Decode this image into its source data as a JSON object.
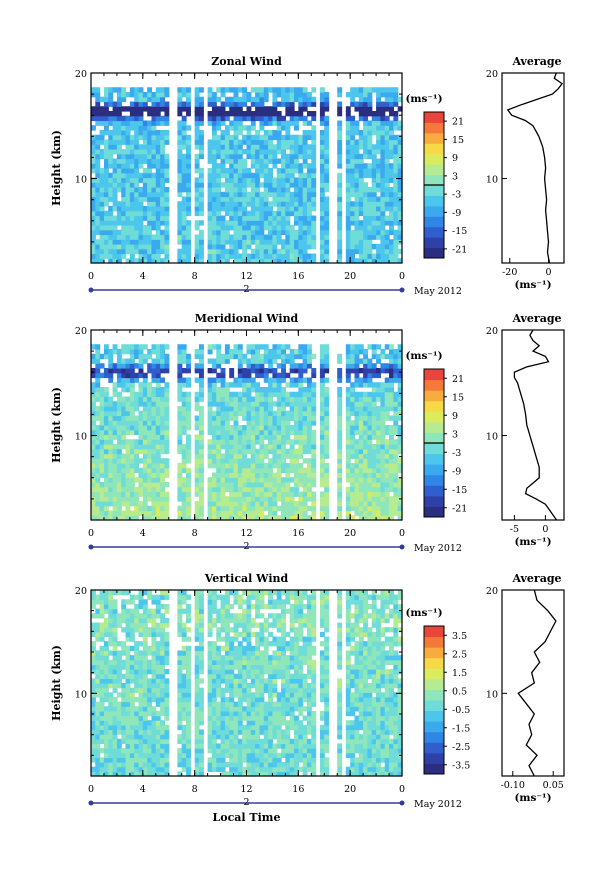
{
  "chart_data": [
    {
      "type": "heatmap",
      "title": "Zonal Wind",
      "ylabel": "Height (km)",
      "xlabel": "",
      "xlim": [
        0,
        24
      ],
      "ylim": [
        2,
        20
      ],
      "x_ticks": [
        "0",
        "4",
        "8",
        "12",
        "16",
        "20",
        "0"
      ],
      "y_ticks": [
        "10",
        "20"
      ],
      "date_marker": "2",
      "date_label": "May 2012",
      "colorbar": {
        "unit": "(ms⁻¹)",
        "ticks": [
          "21",
          "15",
          "9",
          "3",
          "-3",
          "-9",
          "-15",
          "-21"
        ],
        "range": [
          -24,
          24
        ],
        "zero_contour": true
      },
      "field": {
        "min_height_km": 2,
        "max_height_km": 18.5,
        "jet_height_km": 16.4,
        "jet_value": -22,
        "low_level_value": -4,
        "upper_value": -6
      },
      "gaps_hours": [
        [
          6.0,
          6.6
        ],
        [
          7.8,
          8.1
        ],
        [
          8.6,
          9.0
        ],
        [
          17.2,
          17.6
        ],
        [
          18.5,
          18.9
        ],
        [
          19.3,
          19.6
        ]
      ],
      "profile": {
        "title": "Average",
        "xlabel": "(ms⁻¹)",
        "xlim": [
          -24,
          8
        ],
        "x_ticks": [
          "-20",
          "0"
        ],
        "y_ticks": [
          "10",
          "20"
        ],
        "heights_km": [
          2.0,
          3.0,
          4.0,
          5.0,
          6.0,
          7.0,
          8.0,
          9.0,
          10.0,
          11.0,
          12.0,
          13.0,
          14.0,
          15.0,
          15.5,
          16.0,
          16.5,
          17.0,
          17.5,
          18.0,
          18.5,
          19.0,
          19.5,
          20.0
        ],
        "values": [
          0.5,
          -0.5,
          0.0,
          -0.5,
          -1.0,
          -1.5,
          -1.0,
          -1.5,
          -2.0,
          -1.5,
          -2.0,
          -3.0,
          -5.0,
          -8.0,
          -12.0,
          -19.0,
          -21.0,
          -14.0,
          -6.0,
          2.0,
          5.0,
          7.0,
          3.0,
          4.0
        ]
      }
    },
    {
      "type": "heatmap",
      "title": "Meridional Wind",
      "ylabel": "Height (km)",
      "xlabel": "",
      "xlim": [
        0,
        24
      ],
      "ylim": [
        2,
        20
      ],
      "x_ticks": [
        "0",
        "4",
        "8",
        "12",
        "16",
        "20",
        "0"
      ],
      "y_ticks": [
        "10",
        "20"
      ],
      "date_marker": "2",
      "date_label": "May 2012",
      "colorbar": {
        "unit": "(ms⁻¹)",
        "ticks": [
          "21",
          "15",
          "9",
          "3",
          "-3",
          "-9",
          "-15",
          "-21"
        ],
        "range": [
          -24,
          24
        ],
        "zero_contour": true
      },
      "field": {
        "min_height_km": 2,
        "max_height_km": 18.5,
        "jet_height_km": 16.0,
        "jet_value": -16,
        "low_level_value": 4,
        "upper_value": -5
      },
      "gaps_hours": [
        [
          6.0,
          6.6
        ],
        [
          7.8,
          8.1
        ],
        [
          8.6,
          9.0
        ],
        [
          17.2,
          17.6
        ],
        [
          18.5,
          18.9
        ],
        [
          19.3,
          19.6
        ]
      ],
      "profile": {
        "title": "Average",
        "xlabel": "(ms⁻¹)",
        "xlim": [
          -7,
          3
        ],
        "x_ticks": [
          "-5",
          "0"
        ],
        "y_ticks": [
          "10",
          "20"
        ],
        "heights_km": [
          2.0,
          2.5,
          3.0,
          3.5,
          4.0,
          4.5,
          5.0,
          5.5,
          6.0,
          7.0,
          8.0,
          9.0,
          10.0,
          11.0,
          12.0,
          13.0,
          14.0,
          15.0,
          15.5,
          16.0,
          16.5,
          17.0,
          17.5,
          18.0,
          18.5,
          19.0,
          19.5,
          20.0
        ],
        "values": [
          1.8,
          1.2,
          0.6,
          0.0,
          -1.5,
          -3.2,
          -3.0,
          -2.0,
          -1.0,
          -1.0,
          -1.5,
          -2.0,
          -2.5,
          -3.0,
          -3.2,
          -3.5,
          -4.0,
          -4.5,
          -5.0,
          -5.0,
          -3.0,
          0.5,
          0.0,
          -2.0,
          -1.0,
          -2.0,
          -2.5,
          -2.0
        ]
      }
    },
    {
      "type": "heatmap",
      "title": "Vertical Wind",
      "ylabel": "Height (km)",
      "xlabel": "Local Time",
      "xlim": [
        0,
        24
      ],
      "ylim": [
        2,
        20
      ],
      "x_ticks": [
        "0",
        "4",
        "8",
        "12",
        "16",
        "20",
        "0"
      ],
      "y_ticks": [
        "10",
        "20"
      ],
      "date_marker": "2",
      "date_label": "May 2012",
      "colorbar": {
        "unit": "(ms⁻¹)",
        "ticks": [
          "3.5",
          "2.5",
          "1.5",
          "0.5",
          "-0.5",
          "-1.5",
          "-2.5",
          "-3.5"
        ],
        "range": [
          -4,
          4
        ],
        "zero_contour": false
      },
      "field": {
        "min_height_km": 2,
        "max_height_km": 20,
        "jet_height_km": 17.0,
        "jet_value": 0.4,
        "low_level_value": -0.2,
        "upper_value": 0.0
      },
      "gaps_hours": [
        [
          6.0,
          6.6
        ],
        [
          7.8,
          8.1
        ],
        [
          8.6,
          9.0
        ],
        [
          17.2,
          17.6
        ],
        [
          18.5,
          18.9
        ],
        [
          19.3,
          19.6
        ]
      ],
      "profile": {
        "title": "Average",
        "xlabel": "(ms⁻¹)",
        "xlim": [
          -0.14,
          0.09
        ],
        "x_ticks": [
          "-0.10",
          "0.05"
        ],
        "y_ticks": [
          "10",
          "20"
        ],
        "heights_km": [
          2.0,
          3.0,
          4.0,
          5.0,
          6.0,
          7.0,
          8.0,
          9.0,
          10.0,
          11.0,
          12.0,
          13.0,
          14.0,
          15.0,
          16.0,
          17.0,
          18.0,
          19.0,
          20.0
        ],
        "values": [
          -0.02,
          -0.04,
          -0.01,
          -0.05,
          -0.03,
          -0.04,
          -0.02,
          -0.05,
          -0.08,
          -0.02,
          -0.03,
          0.0,
          -0.02,
          0.02,
          0.04,
          0.06,
          0.03,
          -0.01,
          -0.02
        ]
      }
    }
  ]
}
